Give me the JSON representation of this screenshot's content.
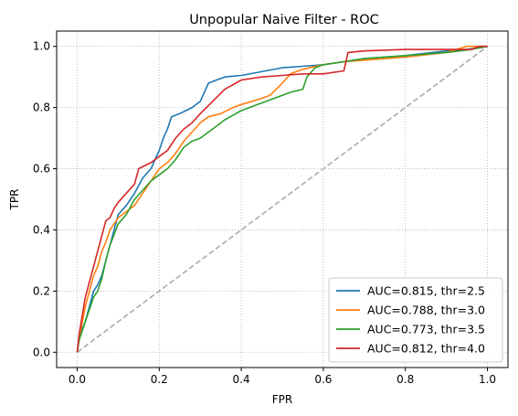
{
  "chart_data": {
    "type": "line",
    "title": "Unpopular Naive Filter - ROC",
    "xlabel": "FPR",
    "ylabel": "TPR",
    "xlim": [
      -0.05,
      1.05
    ],
    "ylim": [
      -0.05,
      1.05
    ],
    "xticks": [
      0.0,
      0.2,
      0.4,
      0.6,
      0.8,
      1.0
    ],
    "yticks": [
      0.0,
      0.2,
      0.4,
      0.6,
      0.8,
      1.0
    ],
    "xtick_labels": [
      "0.0",
      "0.2",
      "0.4",
      "0.6",
      "0.8",
      "1.0"
    ],
    "ytick_labels": [
      "0.0",
      "0.2",
      "0.4",
      "0.6",
      "0.8",
      "1.0"
    ],
    "grid": true,
    "legend_position": "bottom-right",
    "chance_line": {
      "x": [
        0,
        1
      ],
      "y": [
        0,
        1
      ],
      "color": "#aaaaaa",
      "style": "dashed"
    },
    "series": [
      {
        "name": "AUC=0.815, thr=2.5",
        "color": "#1f77b4",
        "x": [
          0,
          0.005,
          0.01,
          0.02,
          0.03,
          0.04,
          0.05,
          0.06,
          0.07,
          0.08,
          0.09,
          0.1,
          0.12,
          0.14,
          0.16,
          0.18,
          0.2,
          0.21,
          0.22,
          0.23,
          0.25,
          0.28,
          0.3,
          0.31,
          0.32,
          0.34,
          0.36,
          0.4,
          0.5,
          0.55,
          0.6,
          0.65,
          0.7,
          0.8,
          0.9,
          0.95,
          1.0
        ],
        "y": [
          0,
          0.05,
          0.07,
          0.1,
          0.15,
          0.2,
          0.22,
          0.25,
          0.3,
          0.35,
          0.4,
          0.45,
          0.48,
          0.52,
          0.57,
          0.6,
          0.66,
          0.7,
          0.73,
          0.77,
          0.78,
          0.8,
          0.82,
          0.85,
          0.88,
          0.89,
          0.9,
          0.905,
          0.93,
          0.935,
          0.94,
          0.95,
          0.96,
          0.97,
          0.985,
          0.99,
          1.0
        ]
      },
      {
        "name": "AUC=0.788, thr=3.0",
        "color": "#ff7f0e",
        "x": [
          0,
          0.005,
          0.01,
          0.02,
          0.03,
          0.04,
          0.05,
          0.06,
          0.07,
          0.08,
          0.1,
          0.12,
          0.14,
          0.16,
          0.18,
          0.2,
          0.22,
          0.24,
          0.26,
          0.28,
          0.3,
          0.32,
          0.35,
          0.38,
          0.4,
          0.45,
          0.47,
          0.5,
          0.52,
          0.55,
          0.6,
          0.65,
          0.7,
          0.8,
          0.9,
          0.95,
          1.0
        ],
        "y": [
          0,
          0.05,
          0.08,
          0.15,
          0.2,
          0.25,
          0.28,
          0.33,
          0.36,
          0.4,
          0.44,
          0.46,
          0.48,
          0.52,
          0.56,
          0.6,
          0.62,
          0.65,
          0.69,
          0.72,
          0.75,
          0.77,
          0.78,
          0.8,
          0.81,
          0.83,
          0.84,
          0.88,
          0.91,
          0.925,
          0.94,
          0.95,
          0.955,
          0.965,
          0.98,
          1.0,
          1.0
        ]
      },
      {
        "name": "AUC=0.773, thr=3.5",
        "color": "#2ca02c",
        "x": [
          0,
          0.005,
          0.01,
          0.02,
          0.03,
          0.04,
          0.05,
          0.06,
          0.07,
          0.08,
          0.1,
          0.12,
          0.14,
          0.16,
          0.18,
          0.2,
          0.22,
          0.24,
          0.26,
          0.28,
          0.3,
          0.33,
          0.36,
          0.4,
          0.44,
          0.48,
          0.52,
          0.55,
          0.56,
          0.58,
          0.6,
          0.65,
          0.7,
          0.8,
          0.9,
          0.96,
          1.0
        ],
        "y": [
          0,
          0.04,
          0.06,
          0.1,
          0.14,
          0.18,
          0.2,
          0.24,
          0.3,
          0.35,
          0.42,
          0.45,
          0.5,
          0.53,
          0.56,
          0.58,
          0.6,
          0.63,
          0.67,
          0.69,
          0.7,
          0.73,
          0.76,
          0.79,
          0.81,
          0.83,
          0.85,
          0.86,
          0.9,
          0.93,
          0.94,
          0.95,
          0.96,
          0.97,
          0.98,
          0.99,
          1.0
        ]
      },
      {
        "name": "AUC=0.812, thr=4.0",
        "color": "#d62728",
        "x": [
          0,
          0.005,
          0.01,
          0.02,
          0.03,
          0.04,
          0.05,
          0.06,
          0.07,
          0.08,
          0.09,
          0.1,
          0.12,
          0.14,
          0.15,
          0.18,
          0.2,
          0.22,
          0.24,
          0.26,
          0.28,
          0.3,
          0.33,
          0.36,
          0.4,
          0.45,
          0.5,
          0.55,
          0.6,
          0.65,
          0.66,
          0.7,
          0.8,
          0.9,
          0.96,
          0.98,
          1.0
        ],
        "y": [
          0,
          0.06,
          0.1,
          0.18,
          0.23,
          0.28,
          0.33,
          0.38,
          0.43,
          0.44,
          0.47,
          0.49,
          0.52,
          0.55,
          0.6,
          0.62,
          0.64,
          0.66,
          0.7,
          0.73,
          0.75,
          0.78,
          0.82,
          0.86,
          0.89,
          0.9,
          0.905,
          0.91,
          0.91,
          0.92,
          0.98,
          0.985,
          0.99,
          0.99,
          0.99,
          1.0,
          1.0
        ]
      }
    ]
  }
}
